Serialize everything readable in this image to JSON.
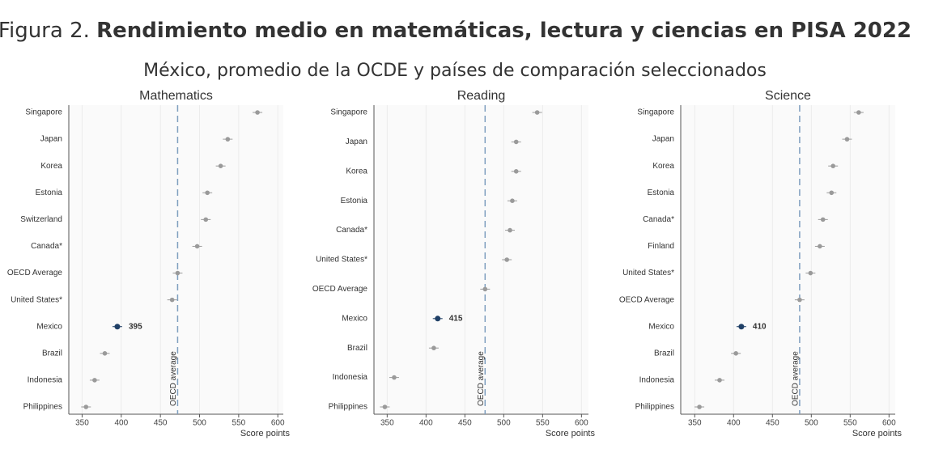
{
  "header": {
    "label": "Figura 2.",
    "title": "Rendimiento medio en matemáticas, lectura y ciencias en PISA 2022",
    "subtitle": "México, promedio de la OCDE y países de comparación seleccionados"
  },
  "chart_data": [
    {
      "type": "dot",
      "title": "Mathematics",
      "x_label": "Score points",
      "categories": [
        "Singapore",
        "Japan",
        "Korea",
        "Estonia",
        "Switzerland",
        "Canada*",
        "OECD Average",
        "United States*",
        "Mexico",
        "Brazil",
        "Indonesia",
        "Philippines"
      ],
      "values": [
        574,
        536,
        527,
        510,
        508,
        497,
        472,
        465,
        395,
        379,
        366,
        355
      ],
      "color": "#9a9a9a",
      "highlight": "Mexico",
      "highlight_color": "#1f3f66",
      "reference": {
        "value": 472,
        "label": "OECD average"
      },
      "reference_color": "#7f9fbf",
      "xlim": [
        333,
        607
      ],
      "xticks": [
        350,
        400,
        450,
        500,
        550,
        600
      ],
      "grid": true
    },
    {
      "type": "dot",
      "title": "Reading",
      "x_label": "Score points",
      "categories": [
        "Singapore",
        "Japan",
        "Korea",
        "Estonia",
        "Canada*",
        "United States*",
        "OECD Average",
        "Mexico",
        "Brazil",
        "Indonesia",
        "Philippines"
      ],
      "values": [
        543,
        516,
        516,
        511,
        508,
        504,
        476,
        415,
        410,
        359,
        347
      ],
      "color": "#9a9a9a",
      "highlight": "Mexico",
      "highlight_color": "#1f3f66",
      "reference": {
        "value": 476,
        "label": "OECD average"
      },
      "reference_color": "#7f9fbf",
      "xlim": [
        333,
        609
      ],
      "xticks": [
        350,
        400,
        450,
        500,
        550,
        600
      ],
      "grid": true
    },
    {
      "type": "dot",
      "title": "Science",
      "x_label": "Score points",
      "categories": [
        "Singapore",
        "Japan",
        "Korea",
        "Estonia",
        "Canada*",
        "Finland",
        "United States*",
        "OECD Average",
        "Mexico",
        "Brazil",
        "Indonesia",
        "Philippines"
      ],
      "values": [
        561,
        546,
        528,
        526,
        515,
        511,
        499,
        485,
        410,
        403,
        382,
        356
      ],
      "color": "#9a9a9a",
      "highlight": "Mexico",
      "highlight_color": "#1f3f66",
      "reference": {
        "value": 485,
        "label": "OECD average"
      },
      "reference_color": "#7f9fbf",
      "xlim": [
        332,
        608
      ],
      "xticks": [
        350,
        400,
        450,
        500,
        550,
        600
      ],
      "grid": true
    }
  ]
}
